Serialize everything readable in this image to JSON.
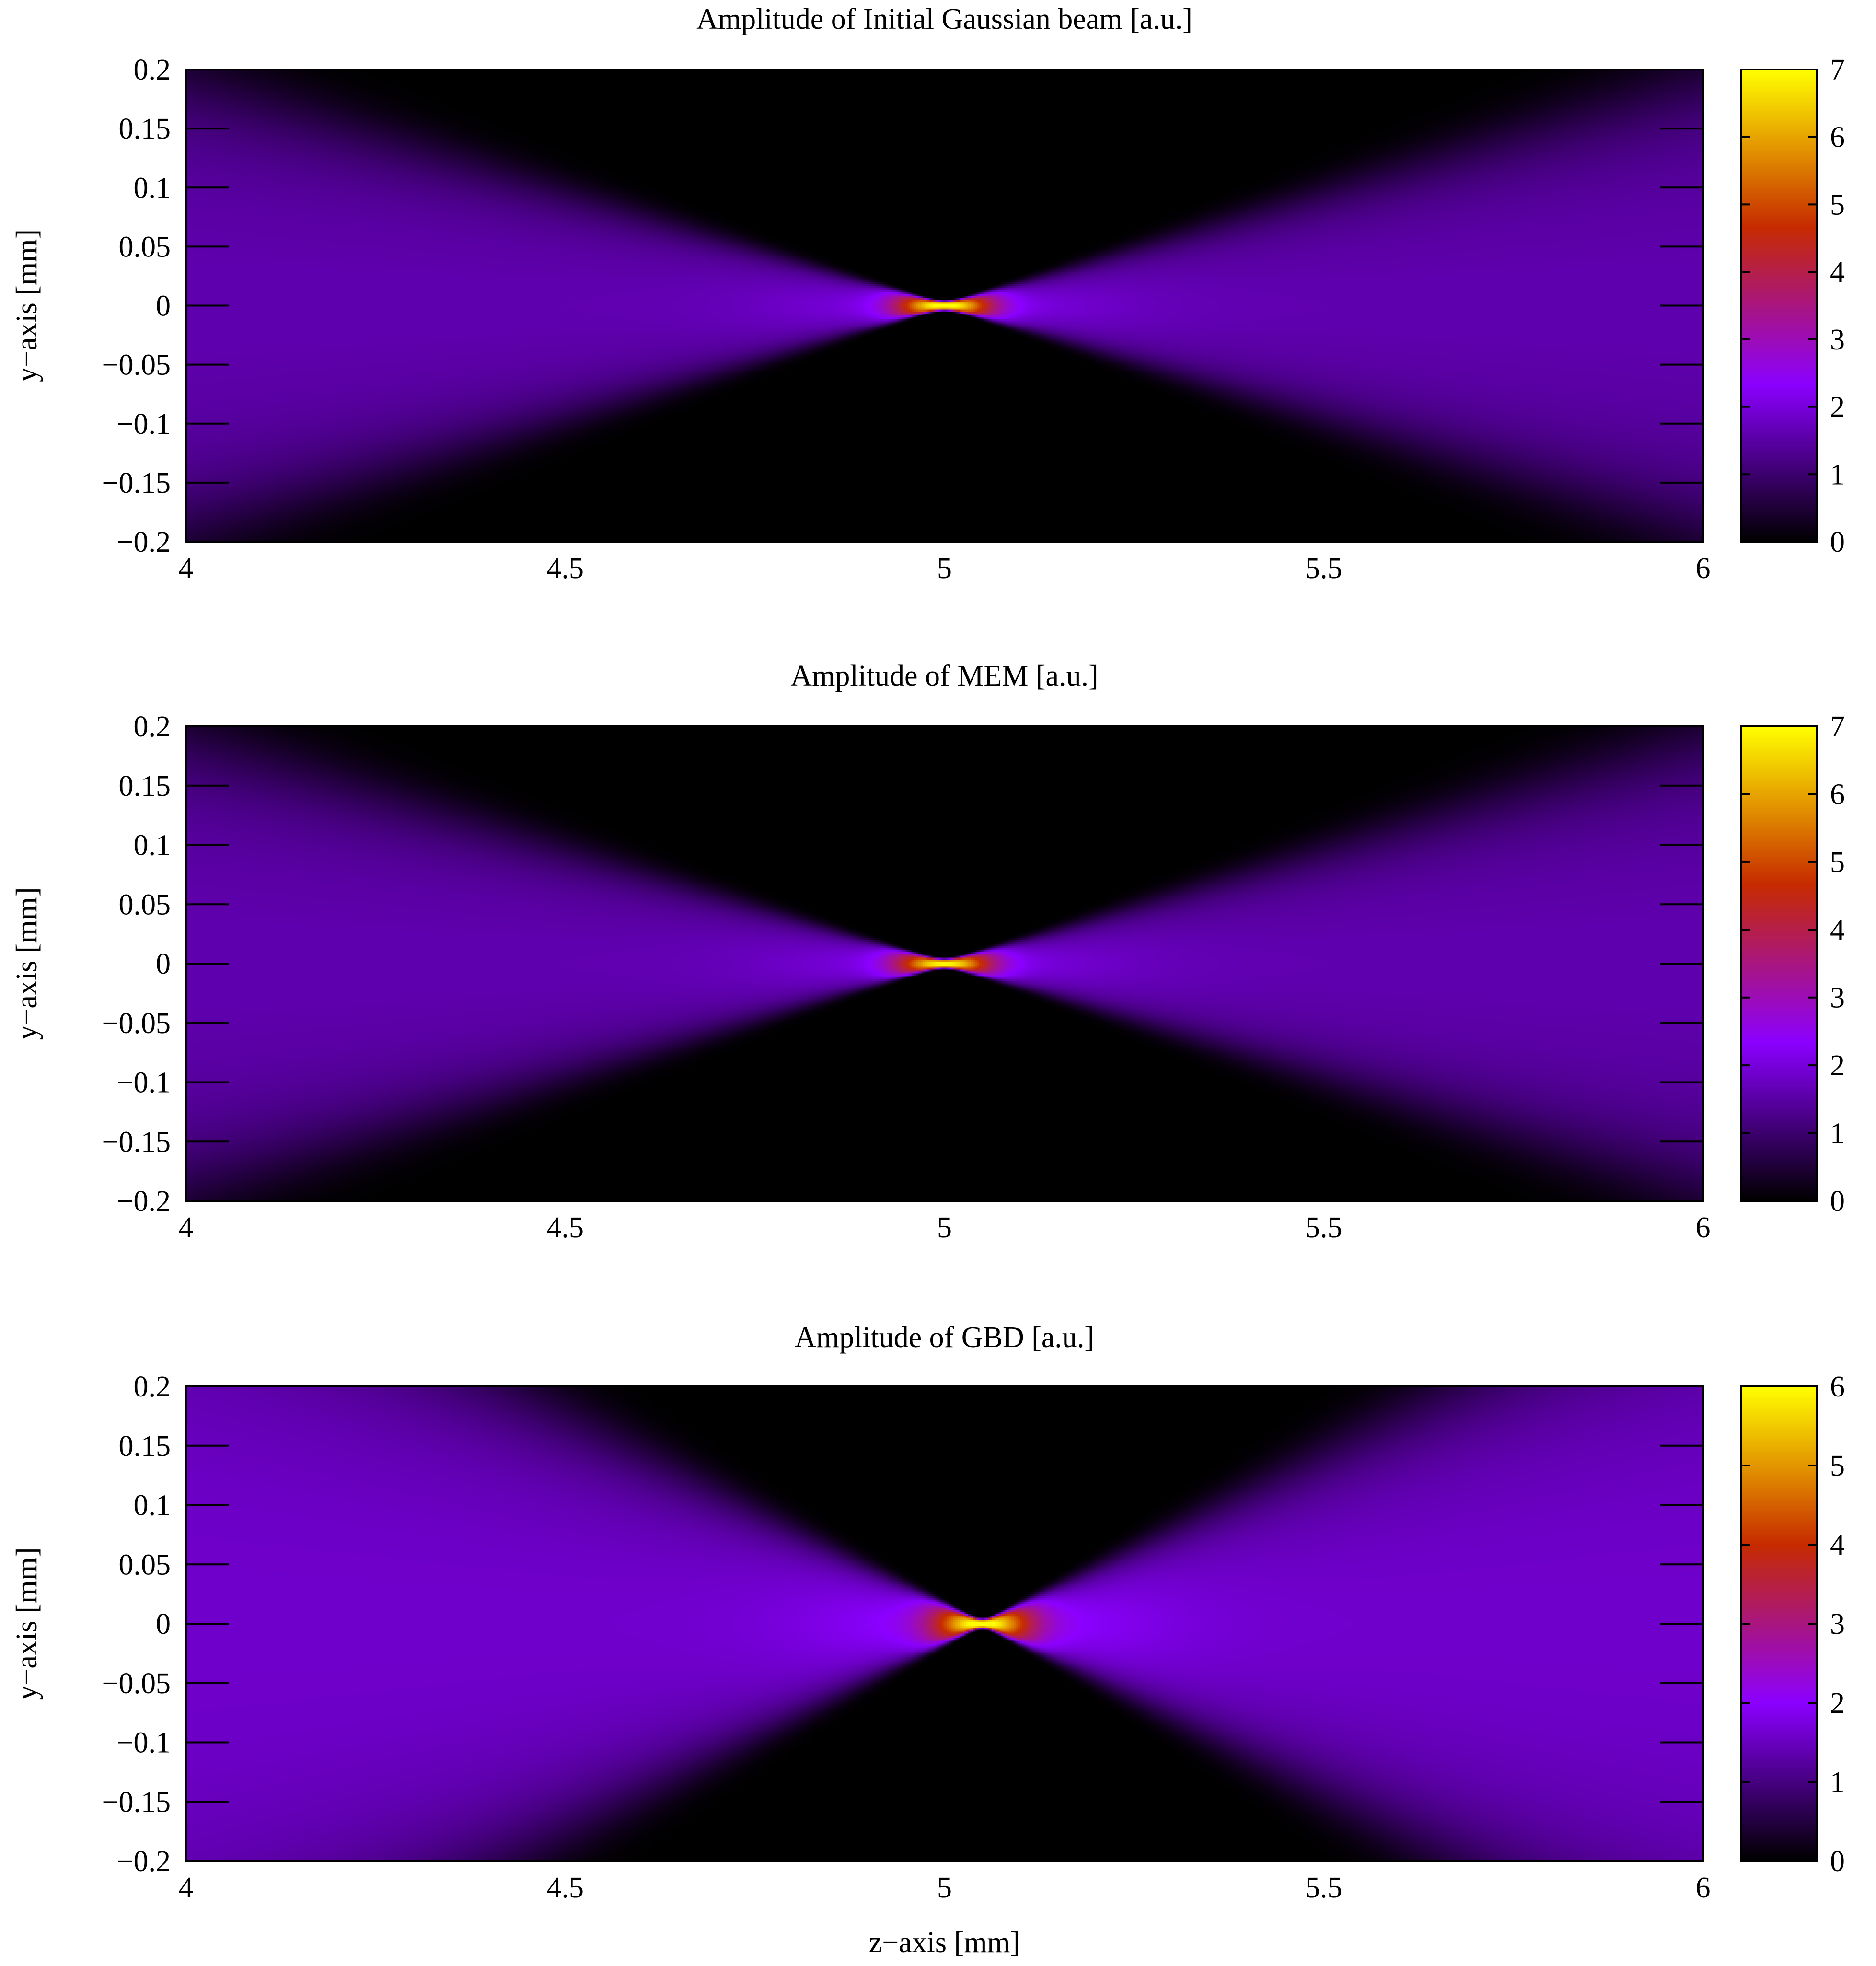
{
  "chart_data": [
    {
      "type": "heatmap",
      "title": "Amplitude of Initial Gaussian beam [a.u.]",
      "xlabel": "",
      "ylabel": "y−axis [mm]",
      "xlim": [
        4,
        6
      ],
      "ylim": [
        -0.2,
        0.2
      ],
      "xticks": [
        "4",
        "4.5",
        "5",
        "5.5",
        "6"
      ],
      "yticks": [
        "0.2",
        "0.15",
        "0.1",
        "0.05",
        "0",
        "−0.05",
        "−0.1",
        "−0.15",
        "−0.2"
      ],
      "colorbar_range": [
        0,
        7
      ],
      "colorbar_ticks": [
        "0",
        "1",
        "2",
        "3",
        "4",
        "5",
        "6",
        "7"
      ],
      "colormap": [
        "#000000",
        "#8b00ff",
        "#c62b00",
        "#ffff00"
      ],
      "field": {
        "focus_z": 5.0,
        "peak": 6.8,
        "far_amplitude": 1.6,
        "half_angle_slope": 0.2,
        "waist": 0.004,
        "shift": 0.0
      }
    },
    {
      "type": "heatmap",
      "title": "Amplitude of MEM [a.u.]",
      "xlabel": "",
      "ylabel": "y−axis [mm]",
      "xlim": [
        4,
        6
      ],
      "ylim": [
        -0.2,
        0.2
      ],
      "xticks": [
        "4",
        "4.5",
        "5",
        "5.5",
        "6"
      ],
      "yticks": [
        "0.2",
        "0.15",
        "0.1",
        "0.05",
        "0",
        "−0.05",
        "−0.1",
        "−0.15",
        "−0.2"
      ],
      "colorbar_range": [
        0,
        7
      ],
      "colorbar_ticks": [
        "0",
        "1",
        "2",
        "3",
        "4",
        "5",
        "6",
        "7"
      ],
      "colormap": [
        "#000000",
        "#8b00ff",
        "#c62b00",
        "#ffff00"
      ],
      "field": {
        "focus_z": 5.0,
        "peak": 6.5,
        "far_amplitude": 1.6,
        "half_angle_slope": 0.2,
        "waist": 0.004,
        "shift": 0.0
      }
    },
    {
      "type": "heatmap",
      "title": "Amplitude of GBD [a.u.]",
      "xlabel": "z−axis [mm]",
      "ylabel": "y−axis [mm]",
      "xlim": [
        4,
        6
      ],
      "ylim": [
        -0.2,
        0.2
      ],
      "xticks": [
        "4",
        "4.5",
        "5",
        "5.5",
        "6"
      ],
      "yticks": [
        "0.2",
        "0.15",
        "0.1",
        "0.05",
        "0",
        "−0.05",
        "−0.1",
        "−0.15",
        "−0.2"
      ],
      "colorbar_range": [
        0,
        6
      ],
      "colorbar_ticks": [
        "0",
        "1",
        "2",
        "3",
        "4",
        "5",
        "6"
      ],
      "colormap": [
        "#000000",
        "#8b00ff",
        "#c62b00",
        "#ffff00"
      ],
      "field": {
        "focus_z": 5.05,
        "peak": 5.8,
        "far_amplitude": 1.6,
        "half_angle_slope": 0.33,
        "waist": 0.004,
        "shift": 0.0
      }
    }
  ]
}
